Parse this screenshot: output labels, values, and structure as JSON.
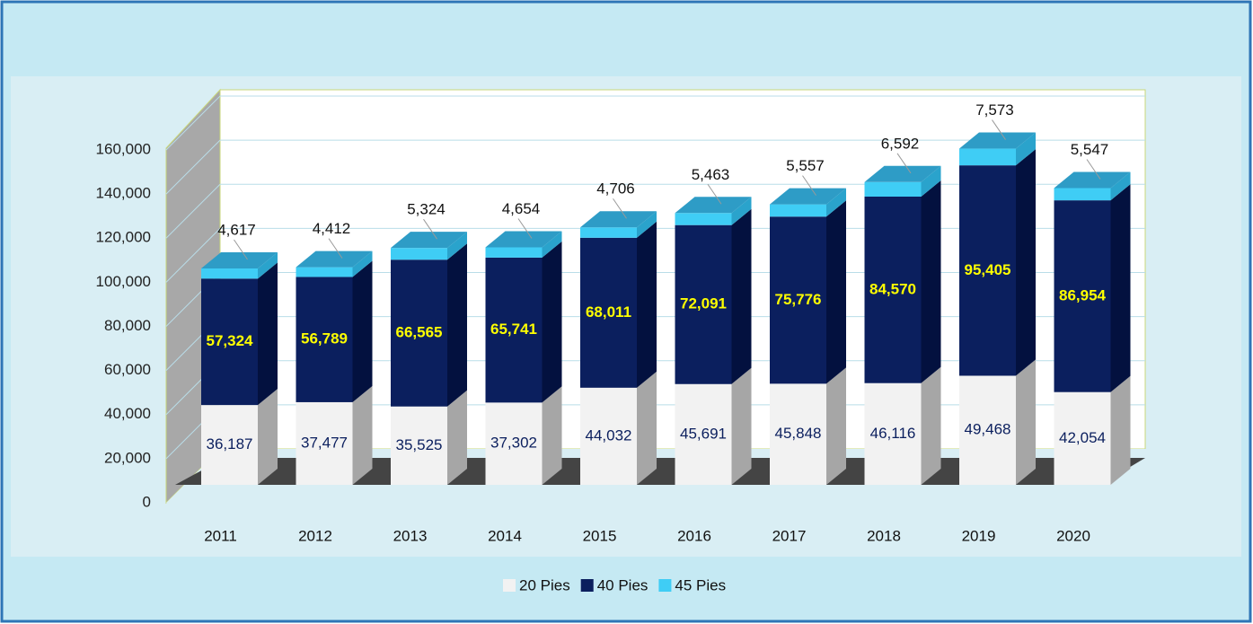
{
  "chart_data": {
    "type": "bar3d_stacked",
    "categories": [
      "2011",
      "2012",
      "2013",
      "2014",
      "2015",
      "2016",
      "2017",
      "2018",
      "2019",
      "2020"
    ],
    "series": [
      {
        "name": "20 Pies",
        "color": "#f2f2f2",
        "values": [
          36187,
          37477,
          35525,
          37302,
          44032,
          45691,
          45848,
          46116,
          49468,
          42054
        ],
        "value_labels": [
          "36,187",
          "37,477",
          "35,525",
          "37,302",
          "44,032",
          "45,691",
          "45,848",
          "46,116",
          "49,468",
          "42,054"
        ]
      },
      {
        "name": "40 Pies",
        "color": "#0b1f5e",
        "values": [
          57324,
          56789,
          66565,
          65741,
          68011,
          72091,
          75776,
          84570,
          95405,
          86954
        ],
        "value_labels": [
          "57,324",
          "56,789",
          "66,565",
          "65,741",
          "68,011",
          "72,091",
          "75,776",
          "84,570",
          "95,405",
          "86,954"
        ]
      },
      {
        "name": "45 Pies",
        "color": "#3fcdf5",
        "values": [
          4617,
          4412,
          5324,
          4654,
          4706,
          5463,
          5557,
          6592,
          7573,
          5547
        ],
        "value_labels": [
          "4,617",
          "4,412",
          "5,324",
          "4,654",
          "4,706",
          "5,463",
          "5,557",
          "6,592",
          "7,573",
          "5,547"
        ]
      }
    ],
    "ylim": [
      0,
      160000
    ],
    "yticks": [
      0,
      {
        "value": 20000,
        "label": "20,000"
      },
      {
        "value": 40000,
        "label": "40,000"
      },
      {
        "value": 60000,
        "label": "60,000"
      },
      {
        "value": 80000,
        "label": "80,000"
      },
      {
        "value": 100000,
        "label": "100,000"
      },
      {
        "value": 120000,
        "label": "120,000"
      },
      {
        "value": 140000,
        "label": "140,000"
      },
      {
        "value": 160000,
        "label": "160,000"
      }
    ],
    "grid": true,
    "legend": "bottom"
  }
}
